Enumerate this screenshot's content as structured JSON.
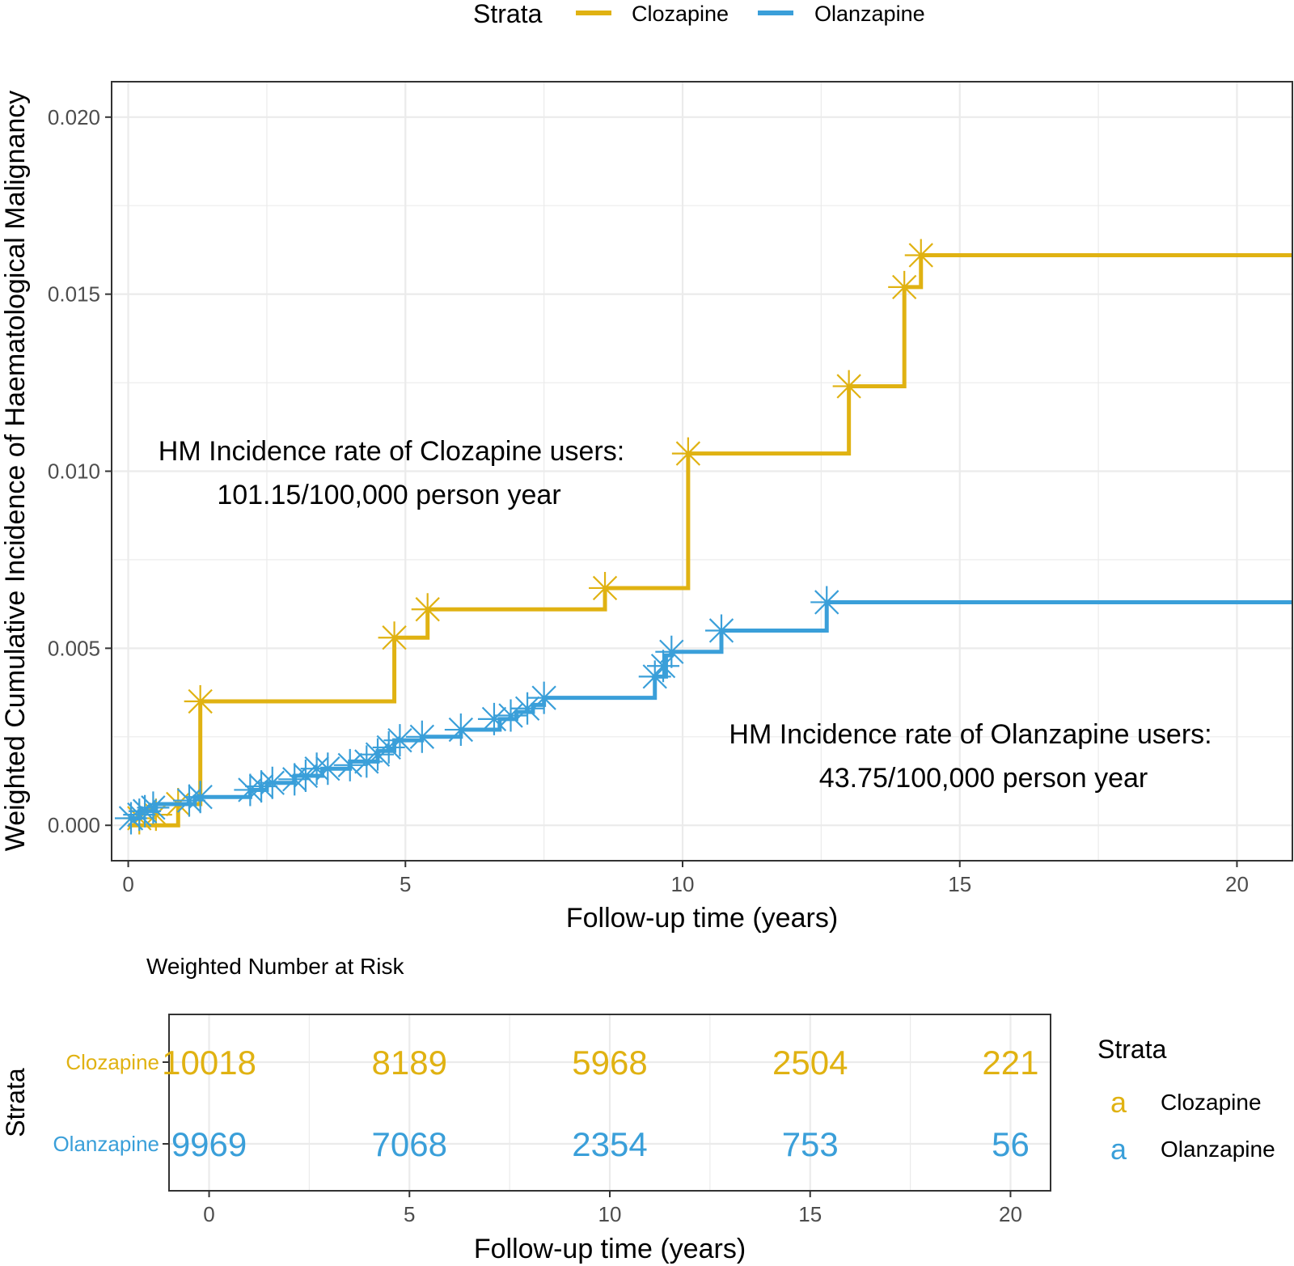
{
  "colors": {
    "clozapine": "#E0B212",
    "olanzapine": "#3A9FD9",
    "grid": "#EBEBEB",
    "axis_text": "#4D4D4D",
    "text": "#000000"
  },
  "legend_top": {
    "title": "Strata",
    "items": [
      "Clozapine",
      "Olanzapine"
    ]
  },
  "chart_data": [
    {
      "type": "line",
      "step": true,
      "ylabel": "Weighted Cumulative Incidence of Haematological Malignancy",
      "xlabel": "Follow-up time (years)",
      "xlim": [
        -0.3,
        21
      ],
      "ylim": [
        -0.001,
        0.021
      ],
      "x_ticks": [
        0,
        5,
        10,
        15,
        20
      ],
      "x_tick_labels": [
        "0",
        "5",
        "10",
        "15",
        "20"
      ],
      "y_ticks": [
        0,
        0.005,
        0.01,
        0.015,
        0.02
      ],
      "y_tick_labels": [
        "0.000",
        "0.005",
        "0.010",
        "0.015",
        "0.020"
      ],
      "grid": true,
      "series": [
        {
          "name": "Clozapine",
          "color": "#E0B212",
          "steps": [
            [
              0,
              0
            ],
            [
              0.9,
              0.0006
            ],
            [
              1.3,
              0.0035
            ],
            [
              4.8,
              0.0053
            ],
            [
              5.4,
              0.0061
            ],
            [
              8.6,
              0.0067
            ],
            [
              10.1,
              0.0105
            ],
            [
              13.0,
              0.0124
            ],
            [
              14.0,
              0.0152
            ],
            [
              14.3,
              0.0161
            ],
            [
              21,
              0.0161
            ]
          ],
          "censor_marks": [
            [
              0.2,
              0.0002
            ],
            [
              0.5,
              0.0003
            ],
            [
              0.9,
              0.0006
            ],
            [
              1.3,
              0.0035
            ],
            [
              4.8,
              0.0053
            ],
            [
              5.4,
              0.0061
            ],
            [
              8.6,
              0.0067
            ],
            [
              10.1,
              0.0105
            ],
            [
              13.0,
              0.0124
            ],
            [
              14.0,
              0.0152
            ],
            [
              14.3,
              0.0161
            ]
          ]
        },
        {
          "name": "Olanzapine",
          "color": "#3A9FD9",
          "steps": [
            [
              0,
              0.0002
            ],
            [
              0.2,
              0.0004
            ],
            [
              0.5,
              0.0006
            ],
            [
              1.2,
              0.0008
            ],
            [
              2.2,
              0.001
            ],
            [
              2.5,
              0.0012
            ],
            [
              3.0,
              0.0014
            ],
            [
              3.5,
              0.0016
            ],
            [
              4.0,
              0.0018
            ],
            [
              4.5,
              0.0021
            ],
            [
              4.8,
              0.0024
            ],
            [
              5.3,
              0.0025
            ],
            [
              6.0,
              0.0027
            ],
            [
              6.7,
              0.003
            ],
            [
              7.0,
              0.0032
            ],
            [
              7.3,
              0.0034
            ],
            [
              7.5,
              0.0036
            ],
            [
              9.5,
              0.0042
            ],
            [
              9.7,
              0.0048
            ],
            [
              9.8,
              0.0049
            ],
            [
              10.7,
              0.0055
            ],
            [
              12.6,
              0.0063
            ],
            [
              21,
              0.0063
            ]
          ],
          "censor_marks": [
            [
              0.05,
              0.0002
            ],
            [
              0.2,
              0.0003
            ],
            [
              0.3,
              0.0004
            ],
            [
              0.45,
              0.0005
            ],
            [
              1.1,
              0.0007
            ],
            [
              1.3,
              0.0008
            ],
            [
              2.2,
              0.001
            ],
            [
              2.4,
              0.0011
            ],
            [
              2.6,
              0.0012
            ],
            [
              3.0,
              0.0013
            ],
            [
              3.2,
              0.0014
            ],
            [
              3.4,
              0.0016
            ],
            [
              3.6,
              0.0016
            ],
            [
              4.0,
              0.0017
            ],
            [
              4.3,
              0.0018
            ],
            [
              4.5,
              0.002
            ],
            [
              4.7,
              0.0022
            ],
            [
              4.9,
              0.0024
            ],
            [
              5.3,
              0.0025
            ],
            [
              6.0,
              0.0027
            ],
            [
              6.6,
              0.003
            ],
            [
              6.9,
              0.0031
            ],
            [
              7.2,
              0.0033
            ],
            [
              7.5,
              0.0036
            ],
            [
              9.5,
              0.0042
            ],
            [
              9.65,
              0.0045
            ],
            [
              9.8,
              0.0049
            ],
            [
              10.7,
              0.0055
            ],
            [
              12.6,
              0.0063
            ]
          ]
        }
      ],
      "annotations": [
        {
          "lines": [
            "HM Incidence rate of Clozapine users:",
            "101.15/100,000 person year"
          ]
        },
        {
          "lines": [
            "HM Incidence rate of Olanzapine users:",
            "43.75/100,000 person year"
          ]
        }
      ]
    },
    {
      "type": "table",
      "title": "Weighted Number at Risk",
      "ylabel": "Strata",
      "xlabel": "Follow-up time (years)",
      "x_ticks": [
        0,
        5,
        10,
        15,
        20
      ],
      "x_tick_labels": [
        "0",
        "5",
        "10",
        "15",
        "20"
      ],
      "rows": [
        {
          "name": "Clozapine",
          "values": [
            "10018",
            "8189",
            "5968",
            "2504",
            "221"
          ]
        },
        {
          "name": "Olanzapine",
          "values": [
            "9969",
            "7068",
            "2354",
            "753",
            "56"
          ]
        }
      ],
      "legend": {
        "title": "Strata",
        "key_glyph": "a",
        "items": [
          "Clozapine",
          "Olanzapine"
        ]
      }
    }
  ]
}
